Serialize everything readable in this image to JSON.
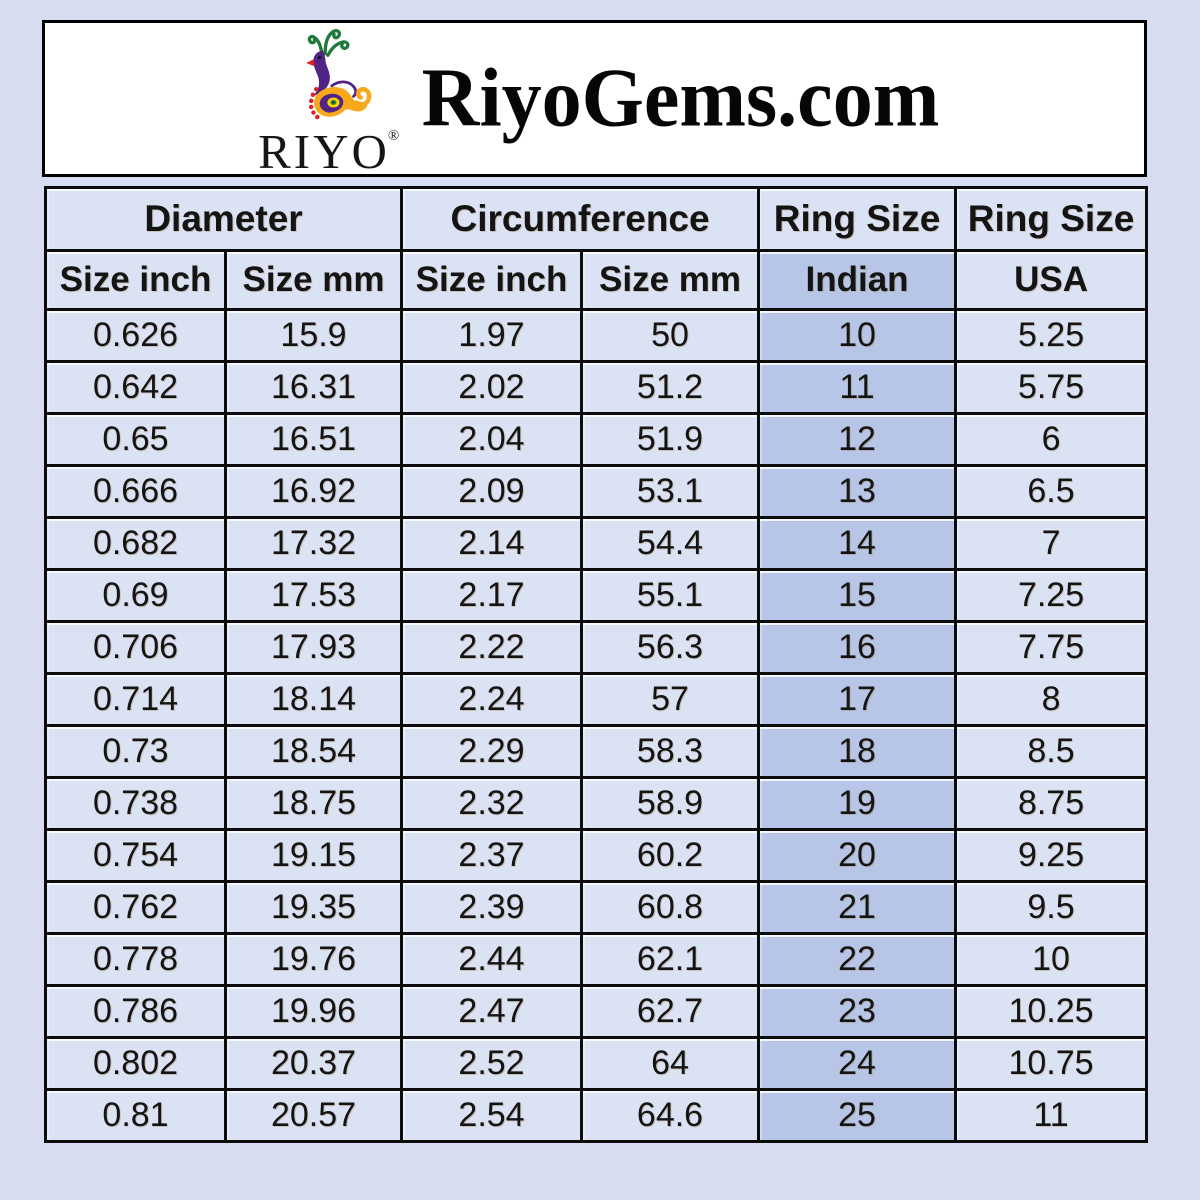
{
  "header": {
    "brand_title": "RiyoGems.com",
    "logo": {
      "word": "RIYO",
      "registered_mark": "®",
      "icon": "peacock-icon"
    }
  },
  "chart_data": {
    "type": "table",
    "title": "RiyoGems.com ring size conversion chart",
    "column_groups": [
      {
        "label": "Diameter",
        "span": 2
      },
      {
        "label": "Circumference",
        "span": 2
      },
      {
        "label": "Ring Size",
        "span": 1
      },
      {
        "label": "Ring Size",
        "span": 1
      }
    ],
    "columns": [
      "Size inch",
      "Size mm",
      "Size inch",
      "Size mm",
      "Indian",
      "USA"
    ],
    "highlighted_column": "Indian",
    "rows": [
      [
        "0.626",
        "15.9",
        "1.97",
        "50",
        "10",
        "5.25"
      ],
      [
        "0.642",
        "16.31",
        "2.02",
        "51.2",
        "11",
        "5.75"
      ],
      [
        "0.65",
        "16.51",
        "2.04",
        "51.9",
        "12",
        "6"
      ],
      [
        "0.666",
        "16.92",
        "2.09",
        "53.1",
        "13",
        "6.5"
      ],
      [
        "0.682",
        "17.32",
        "2.14",
        "54.4",
        "14",
        "7"
      ],
      [
        "0.69",
        "17.53",
        "2.17",
        "55.1",
        "15",
        "7.25"
      ],
      [
        "0.706",
        "17.93",
        "2.22",
        "56.3",
        "16",
        "7.75"
      ],
      [
        "0.714",
        "18.14",
        "2.24",
        "57",
        "17",
        "8"
      ],
      [
        "0.73",
        "18.54",
        "2.29",
        "58.3",
        "18",
        "8.5"
      ],
      [
        "0.738",
        "18.75",
        "2.32",
        "58.9",
        "19",
        "8.75"
      ],
      [
        "0.754",
        "19.15",
        "2.37",
        "60.2",
        "20",
        "9.25"
      ],
      [
        "0.762",
        "19.35",
        "2.39",
        "60.8",
        "21",
        "9.5"
      ],
      [
        "0.778",
        "19.76",
        "2.44",
        "62.1",
        "22",
        "10"
      ],
      [
        "0.786",
        "19.96",
        "2.47",
        "62.7",
        "23",
        "10.25"
      ],
      [
        "0.802",
        "20.37",
        "2.52",
        "64",
        "24",
        "10.75"
      ],
      [
        "0.81",
        "20.57",
        "2.54",
        "64.6",
        "25",
        "11"
      ]
    ]
  },
  "colors": {
    "page_background": "#d8dcf0",
    "header_box_fill": "#ffffff",
    "cell_fill": "#dbe2f4",
    "indian_column_fill": "#b7c6e6",
    "border": "#0c0c0c",
    "text": "#141414",
    "logo_purple": "#4f2585",
    "logo_orange": "#f7a81b",
    "logo_green": "#20793c",
    "logo_red": "#e31e24",
    "logo_yellow": "#ffd200"
  }
}
